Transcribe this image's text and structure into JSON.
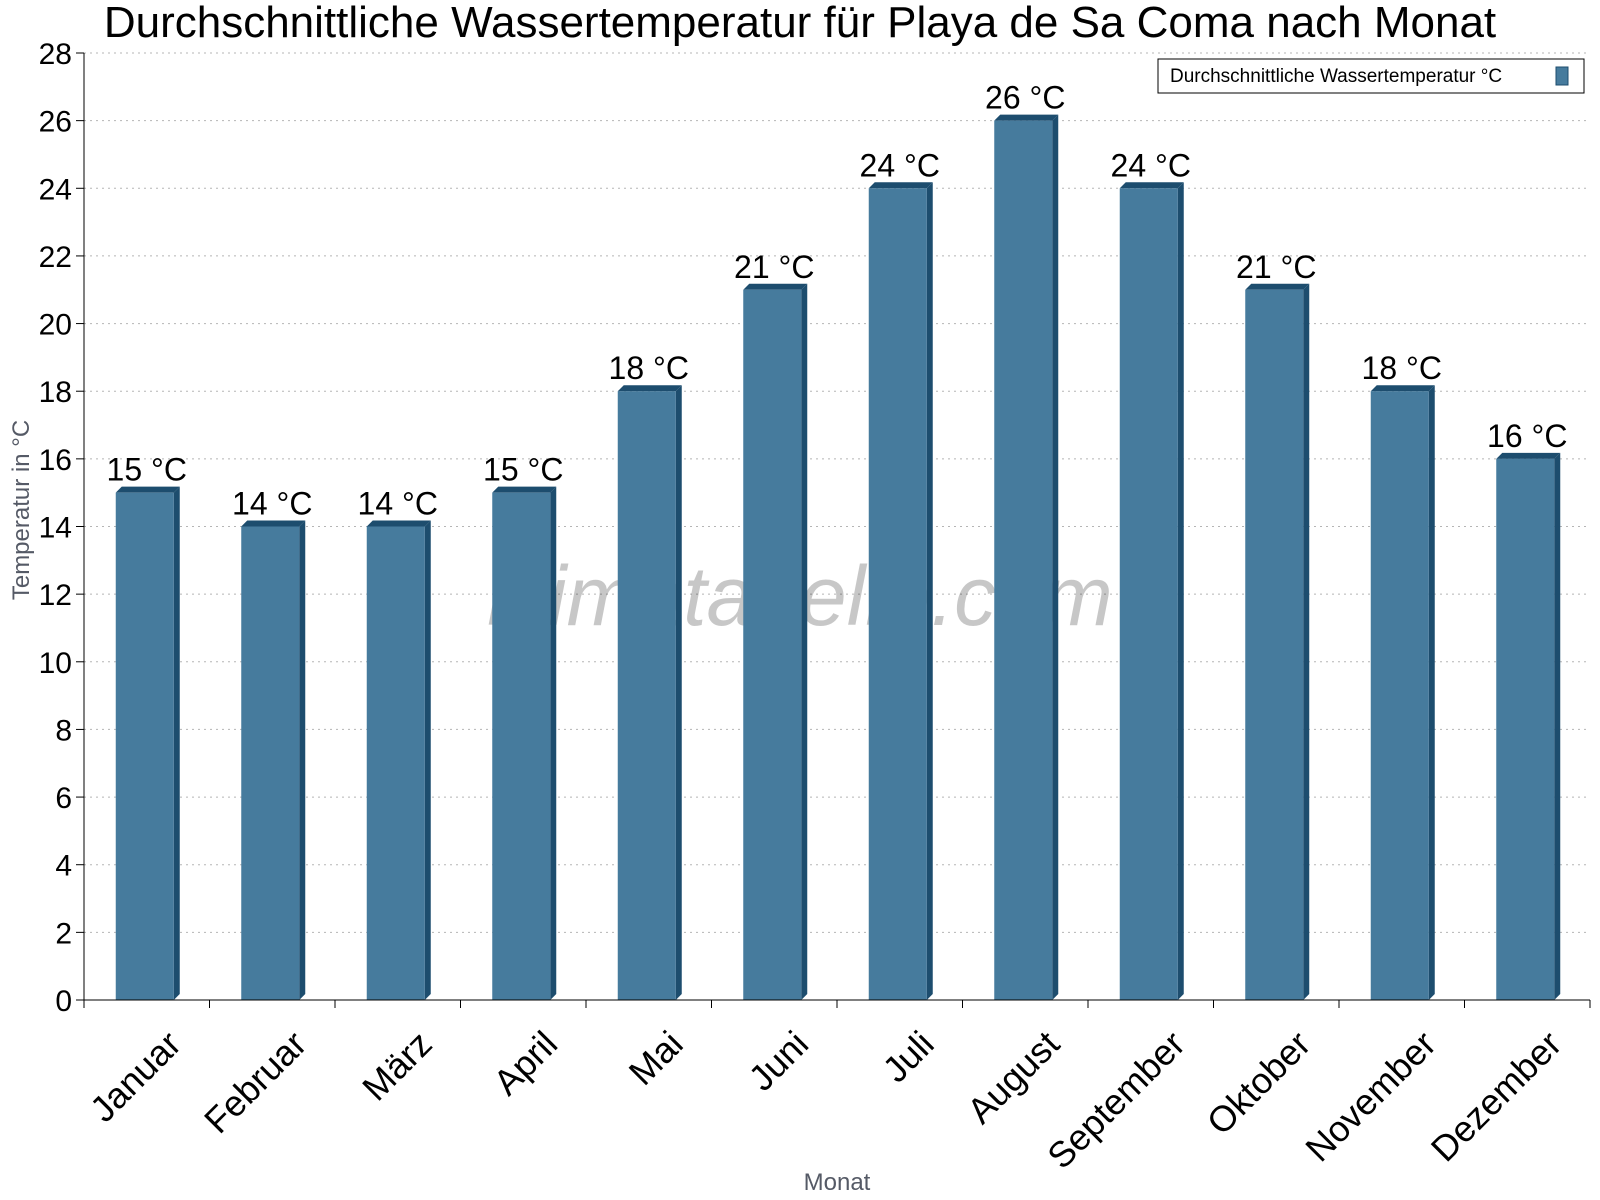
{
  "chart_data": {
    "type": "bar",
    "title": "Durchschnittliche Wassertemperatur für Playa de Sa Coma nach Monat",
    "xlabel": "Monat",
    "ylabel": "Temperatur in °C",
    "ylim": [
      0,
      28
    ],
    "yticks": [
      "0",
      "2",
      "4",
      "6",
      "8",
      "10",
      "12",
      "14",
      "16",
      "18",
      "20",
      "22",
      "24",
      "26",
      "28"
    ],
    "categories": [
      "Januar",
      "Februar",
      "März",
      "April",
      "Mai",
      "Juni",
      "Juli",
      "August",
      "September",
      "Oktober",
      "November",
      "Dezember"
    ],
    "series": [
      {
        "name": "Durchschnittliche Wassertemperatur °C",
        "values": [
          15,
          14,
          14,
          15,
          18,
          21,
          24,
          26,
          24,
          21,
          18,
          16
        ],
        "labels": [
          "15 °C",
          "14 °C",
          "14 °C",
          "15 °C",
          "18 °C",
          "21 °C",
          "24 °C",
          "26 °C",
          "24 °C",
          "21 °C",
          "18 °C",
          "16 °C"
        ],
        "color": "#467b9d",
        "edge_color": "#1d4d6e"
      }
    ],
    "grid": "horizontal dotted",
    "legend_position": "top-right",
    "watermark": "klimatabelle.com"
  }
}
